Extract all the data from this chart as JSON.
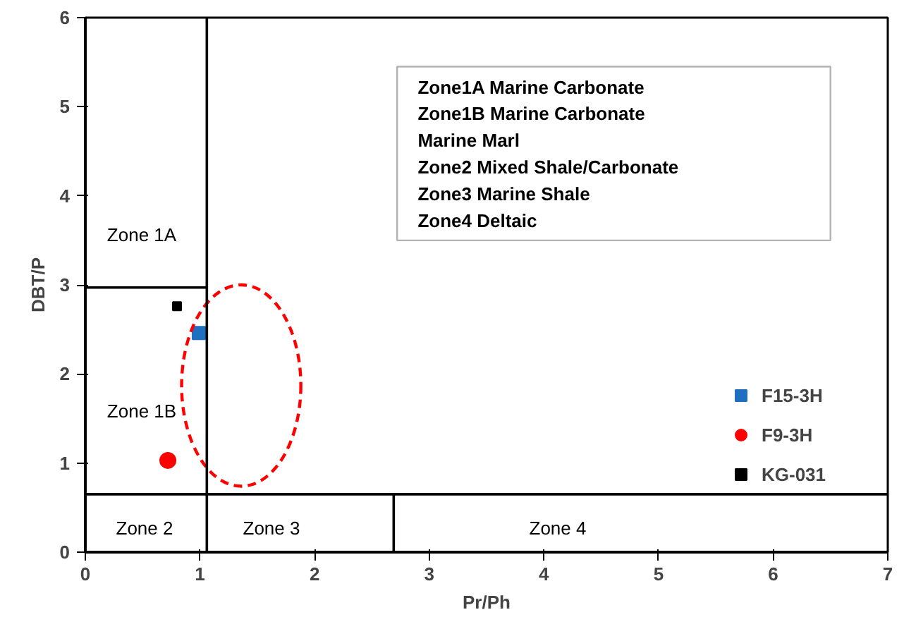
{
  "chart_data": {
    "type": "scatter",
    "xlabel": "Pr/Ph",
    "ylabel": "DBT/P",
    "xlim": [
      0,
      7
    ],
    "ylim": [
      0,
      6
    ],
    "xticks": [
      0,
      1,
      2,
      3,
      4,
      5,
      6,
      7
    ],
    "yticks": [
      0,
      1,
      2,
      3,
      4,
      5,
      6
    ],
    "grid": false,
    "legend": "right",
    "series": [
      {
        "name": "F15-3H",
        "color": "#1f6fc0",
        "marker": "square",
        "x": [
          0.99
        ],
        "values": [
          2.46
        ]
      },
      {
        "name": "F9-3H",
        "color": "#ff0000",
        "marker": "circle",
        "x": [
          0.72
        ],
        "values": [
          1.03
        ]
      },
      {
        "name": "KG-031",
        "color": "#000000",
        "marker": "square",
        "x": [
          0.8
        ],
        "values": [
          2.76
        ]
      },
      {
        "type": "line",
        "color": "#000000",
        "line_style": "solid",
        "marker": "none",
        "x": [
          0,
          1.06
        ],
        "values": [
          2.97,
          2.97
        ]
      },
      {
        "type": "line",
        "color": "#000000",
        "line_style": "solid",
        "marker": "none",
        "x": [
          2.69,
          2.69
        ],
        "values": [
          0,
          0.65
        ]
      }
    ],
    "ref_lines": [
      {
        "axis": "x",
        "value": 1.06,
        "color": "#000000"
      },
      {
        "axis": "y",
        "value": 0.65,
        "color": "#000000"
      }
    ],
    "annotations": [
      "Zone 1A",
      "Zone 1B",
      "Zone 2",
      "Zone 3",
      "Zone 4",
      "Zone1A   Marine Carbonate",
      "Zone1B   Marine Carbonate",
      "               Marine Marl",
      "Zone2     Mixed Shale/Carbonate",
      "Zone3     Marine Shale",
      "Zone4     Deltaic"
    ]
  }
}
